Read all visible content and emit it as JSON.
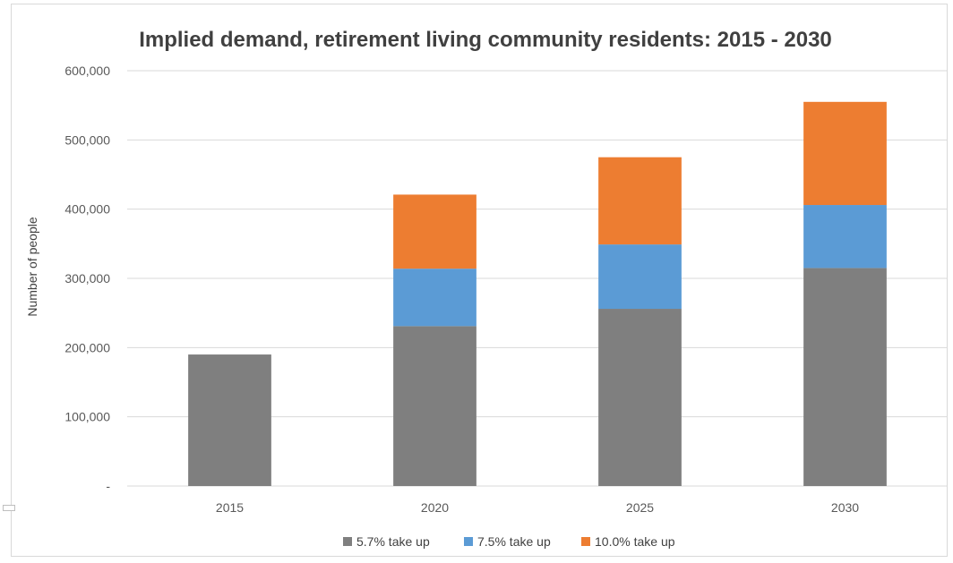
{
  "chart_data": {
    "type": "bar",
    "stacked": true,
    "title": "Implied demand, retirement living community residents: 2015 - 2030",
    "xlabel": "",
    "ylabel": "Number of people",
    "categories": [
      "2015",
      "2020",
      "2025",
      "2030"
    ],
    "series": [
      {
        "name": "5.7% take up",
        "color": "#7f7f7f",
        "values": [
          190000,
          231000,
          256000,
          315000
        ]
      },
      {
        "name": "7.5% take up",
        "color": "#5b9bd5",
        "values": [
          0,
          83000,
          93000,
          91000
        ]
      },
      {
        "name": "10.0% take up",
        "color": "#ed7d31",
        "values": [
          0,
          107000,
          126000,
          149000
        ]
      }
    ],
    "ylim": [
      0,
      600000
    ],
    "yticks": [
      0,
      100000,
      200000,
      300000,
      400000,
      500000,
      600000
    ],
    "ytick_labels": [
      "-",
      "100,000",
      "200,000",
      "300,000",
      "400,000",
      "500,000",
      "600,000"
    ],
    "grid": true,
    "legend_position": "bottom"
  }
}
